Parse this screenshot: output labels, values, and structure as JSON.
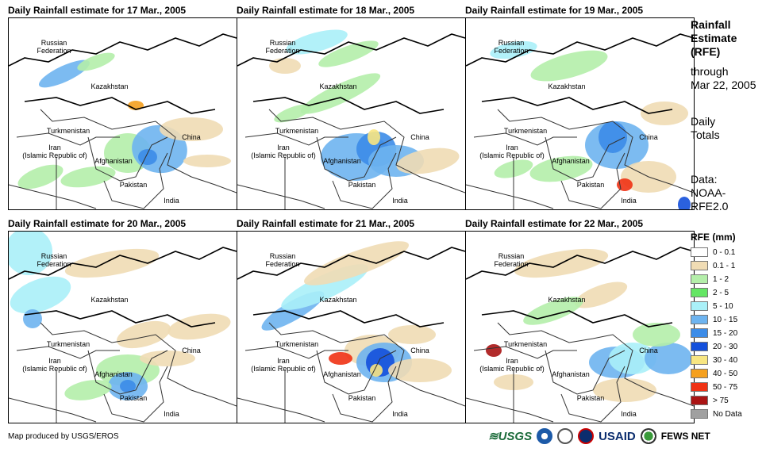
{
  "panels": [
    {
      "title": "Daily Rainfall estimate for 17 Mar., 2005"
    },
    {
      "title": "Daily Rainfall estimate for 18 Mar., 2005"
    },
    {
      "title": "Daily Rainfall estimate for 19 Mar., 2005"
    },
    {
      "title": "Daily Rainfall estimate for 20 Mar., 2005"
    },
    {
      "title": "Daily Rainfall estimate for 21 Mar., 2005"
    },
    {
      "title": "Daily Rainfall estimate for 22 Mar., 2005"
    }
  ],
  "map_labels": {
    "russia": "Russian\nFederation",
    "kazakhstan": "Kazakhstan",
    "turkmenistan": "Turkmenistan",
    "iran": "Iran\n(Islamic Republic of)",
    "afghanistan": "Afghanistan",
    "pakistan": "Pakistan",
    "india": "India",
    "china": "China"
  },
  "side_info": {
    "title_line1": "Rainfall",
    "title_line2": "Estimate",
    "title_line3": "(RFE)",
    "through": "through",
    "date": "Mar 22, 2005",
    "totals_line1": "Daily",
    "totals_line2": "Totals",
    "data_line1": "Data:",
    "data_line2": "NOAA-",
    "data_line3": "RFE2.0"
  },
  "legend": {
    "title": "RFE (mm)",
    "items": [
      {
        "label": "0 - 0.1",
        "color": "#ffffff"
      },
      {
        "label": "0.1 - 1",
        "color": "#f0dcb4"
      },
      {
        "label": "1 - 2",
        "color": "#b4eeaa"
      },
      {
        "label": "2 - 5",
        "color": "#64e664"
      },
      {
        "label": "5 - 10",
        "color": "#aaf0f8"
      },
      {
        "label": "10 - 15",
        "color": "#6eb4f0"
      },
      {
        "label": "15 - 20",
        "color": "#3c8ce8"
      },
      {
        "label": "20 - 30",
        "color": "#1450dc"
      },
      {
        "label": "30 - 40",
        "color": "#f8e682"
      },
      {
        "label": "40 - 50",
        "color": "#f5a01e"
      },
      {
        "label": "50 - 75",
        "color": "#f03214"
      },
      {
        "label": "> 75",
        "color": "#aa1414"
      },
      {
        "label": "No Data",
        "color": "#a0a0a0"
      }
    ]
  },
  "footer": {
    "credit": "Map produced by USGS/EROS"
  },
  "logos": {
    "usgs": "≋USGS",
    "usaid": "USAID",
    "fews": "FEWS NET"
  }
}
